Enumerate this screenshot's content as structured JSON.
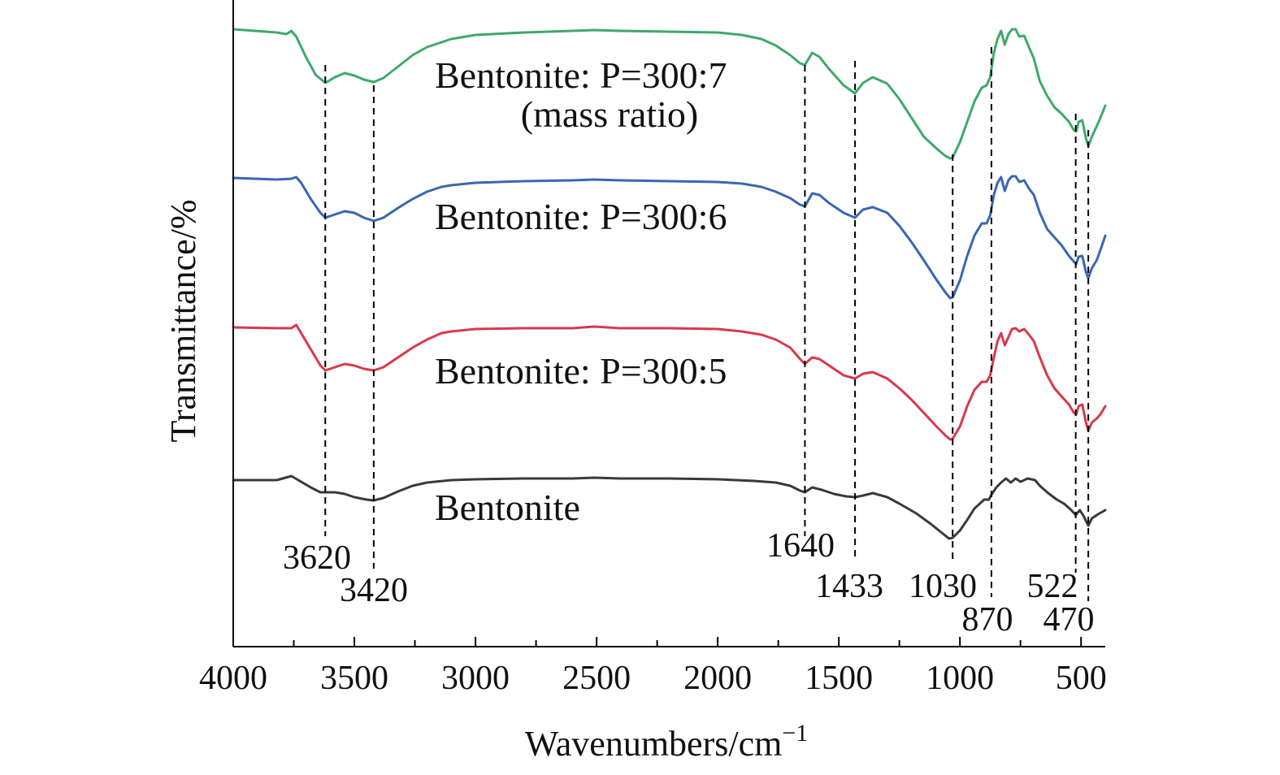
{
  "chart_data": {
    "type": "line",
    "xlabel": "Wavenumbers/cm",
    "xlabel_superscript": "−1",
    "ylabel": "Transmittance/%",
    "xlim": [
      4000,
      400
    ],
    "x_reversed": true,
    "y_ticks": false,
    "grid": false,
    "x_ticks": [
      4000,
      3500,
      3000,
      2500,
      2000,
      1500,
      1000,
      500
    ],
    "x_tick_labels": [
      "4000",
      "3500",
      "3000",
      "2500",
      "2000",
      "1500",
      "1000",
      "500"
    ],
    "peaks": [
      {
        "x": 3620,
        "label": "3620"
      },
      {
        "x": 3420,
        "label": "3420"
      },
      {
        "x": 1640,
        "label": "1640"
      },
      {
        "x": 1433,
        "label": "1433"
      },
      {
        "x": 1030,
        "label": "1030"
      },
      {
        "x": 870,
        "label": "870"
      },
      {
        "x": 522,
        "label": "522"
      },
      {
        "x": 470,
        "label": "470"
      }
    ],
    "series": [
      {
        "label_lines": [
          "Bentonite"
        ],
        "color": "#3a3a3a",
        "points": [
          [
            4000,
            591
          ],
          [
            3820,
            591
          ],
          [
            3760,
            586
          ],
          [
            3720,
            593
          ],
          [
            3680,
            600
          ],
          [
            3640,
            606
          ],
          [
            3620,
            606
          ],
          [
            3580,
            606
          ],
          [
            3540,
            608
          ],
          [
            3500,
            612
          ],
          [
            3450,
            615
          ],
          [
            3420,
            616
          ],
          [
            3380,
            613
          ],
          [
            3320,
            605
          ],
          [
            3260,
            598
          ],
          [
            3200,
            594
          ],
          [
            3100,
            591
          ],
          [
            3000,
            590
          ],
          [
            2800,
            589
          ],
          [
            2600,
            589
          ],
          [
            2510,
            588
          ],
          [
            2400,
            589
          ],
          [
            2200,
            589
          ],
          [
            2000,
            590
          ],
          [
            1850,
            592
          ],
          [
            1760,
            594
          ],
          [
            1700,
            598
          ],
          [
            1660,
            604
          ],
          [
            1640,
            606
          ],
          [
            1610,
            600
          ],
          [
            1570,
            603
          ],
          [
            1520,
            608
          ],
          [
            1470,
            611
          ],
          [
            1433,
            612
          ],
          [
            1400,
            610
          ],
          [
            1360,
            607
          ],
          [
            1300,
            612
          ],
          [
            1250,
            620
          ],
          [
            1180,
            632
          ],
          [
            1120,
            645
          ],
          [
            1070,
            657
          ],
          [
            1045,
            663
          ],
          [
            1030,
            662
          ],
          [
            1000,
            653
          ],
          [
            970,
            640
          ],
          [
            940,
            626
          ],
          [
            900,
            615
          ],
          [
            880,
            615
          ],
          [
            870,
            609
          ],
          [
            850,
            600
          ],
          [
            830,
            594
          ],
          [
            810,
            589
          ],
          [
            790,
            594
          ],
          [
            770,
            589
          ],
          [
            750,
            593
          ],
          [
            720,
            589
          ],
          [
            690,
            591
          ],
          [
            670,
            598
          ],
          [
            640,
            606
          ],
          [
            600,
            615
          ],
          [
            570,
            620
          ],
          [
            540,
            628
          ],
          [
            522,
            634
          ],
          [
            505,
            628
          ],
          [
            490,
            635
          ],
          [
            470,
            647
          ],
          [
            455,
            638
          ],
          [
            430,
            633
          ],
          [
            400,
            628
          ]
        ]
      },
      {
        "label_lines": [
          "Bentonite: P=300:5"
        ],
        "color": "#d8394a",
        "points": [
          [
            4000,
            403
          ],
          [
            3820,
            404
          ],
          [
            3760,
            404
          ],
          [
            3740,
            400
          ],
          [
            3720,
            410
          ],
          [
            3680,
            430
          ],
          [
            3640,
            450
          ],
          [
            3620,
            456
          ],
          [
            3580,
            452
          ],
          [
            3540,
            448
          ],
          [
            3500,
            450
          ],
          [
            3460,
            454
          ],
          [
            3420,
            456
          ],
          [
            3380,
            452
          ],
          [
            3320,
            440
          ],
          [
            3260,
            428
          ],
          [
            3200,
            418
          ],
          [
            3140,
            410
          ],
          [
            3100,
            408
          ],
          [
            3000,
            405
          ],
          [
            2800,
            404
          ],
          [
            2600,
            404
          ],
          [
            2510,
            402
          ],
          [
            2400,
            404
          ],
          [
            2200,
            404
          ],
          [
            2000,
            405
          ],
          [
            1900,
            408
          ],
          [
            1820,
            412
          ],
          [
            1760,
            418
          ],
          [
            1700,
            428
          ],
          [
            1660,
            442
          ],
          [
            1640,
            448
          ],
          [
            1610,
            440
          ],
          [
            1580,
            442
          ],
          [
            1540,
            450
          ],
          [
            1480,
            462
          ],
          [
            1433,
            466
          ],
          [
            1400,
            460
          ],
          [
            1360,
            458
          ],
          [
            1300,
            466
          ],
          [
            1250,
            478
          ],
          [
            1200,
            492
          ],
          [
            1150,
            508
          ],
          [
            1100,
            524
          ],
          [
            1060,
            536
          ],
          [
            1040,
            541
          ],
          [
            1030,
            540
          ],
          [
            1000,
            525
          ],
          [
            970,
            500
          ],
          [
            940,
            480
          ],
          [
            910,
            470
          ],
          [
            890,
            470
          ],
          [
            875,
            462
          ],
          [
            860,
            440
          ],
          [
            845,
            420
          ],
          [
            830,
            410
          ],
          [
            815,
            425
          ],
          [
            800,
            415
          ],
          [
            785,
            405
          ],
          [
            770,
            404
          ],
          [
            755,
            408
          ],
          [
            735,
            405
          ],
          [
            715,
            412
          ],
          [
            695,
            420
          ],
          [
            670,
            440
          ],
          [
            640,
            462
          ],
          [
            610,
            478
          ],
          [
            580,
            488
          ],
          [
            550,
            498
          ],
          [
            530,
            508
          ],
          [
            520,
            510
          ],
          [
            510,
            500
          ],
          [
            495,
            498
          ],
          [
            480,
            520
          ],
          [
            470,
            530
          ],
          [
            455,
            520
          ],
          [
            435,
            515
          ],
          [
            420,
            510
          ],
          [
            400,
            500
          ]
        ]
      },
      {
        "label_lines": [
          "Bentonite: P=300:6"
        ],
        "color": "#3a66b4",
        "points": [
          [
            4000,
            219
          ],
          [
            3820,
            221
          ],
          [
            3760,
            220
          ],
          [
            3740,
            218
          ],
          [
            3720,
            225
          ],
          [
            3680,
            245
          ],
          [
            3640,
            262
          ],
          [
            3620,
            268
          ],
          [
            3580,
            264
          ],
          [
            3540,
            260
          ],
          [
            3500,
            262
          ],
          [
            3460,
            268
          ],
          [
            3420,
            272
          ],
          [
            3380,
            268
          ],
          [
            3320,
            256
          ],
          [
            3260,
            245
          ],
          [
            3200,
            236
          ],
          [
            3140,
            230
          ],
          [
            3100,
            228
          ],
          [
            3000,
            225
          ],
          [
            2800,
            223
          ],
          [
            2600,
            222
          ],
          [
            2510,
            221
          ],
          [
            2400,
            222
          ],
          [
            2200,
            223
          ],
          [
            2000,
            224
          ],
          [
            1900,
            226
          ],
          [
            1820,
            230
          ],
          [
            1760,
            236
          ],
          [
            1700,
            244
          ],
          [
            1660,
            252
          ],
          [
            1640,
            254
          ],
          [
            1610,
            238
          ],
          [
            1580,
            240
          ],
          [
            1540,
            250
          ],
          [
            1480,
            262
          ],
          [
            1433,
            268
          ],
          [
            1400,
            258
          ],
          [
            1360,
            255
          ],
          [
            1300,
            262
          ],
          [
            1250,
            278
          ],
          [
            1200,
            298
          ],
          [
            1150,
            320
          ],
          [
            1100,
            343
          ],
          [
            1060,
            360
          ],
          [
            1040,
            367
          ],
          [
            1030,
            366
          ],
          [
            1000,
            345
          ],
          [
            970,
            315
          ],
          [
            940,
            290
          ],
          [
            910,
            275
          ],
          [
            890,
            275
          ],
          [
            875,
            265
          ],
          [
            860,
            240
          ],
          [
            845,
            225
          ],
          [
            830,
            218
          ],
          [
            815,
            235
          ],
          [
            800,
            222
          ],
          [
            785,
            217
          ],
          [
            770,
            217
          ],
          [
            755,
            224
          ],
          [
            735,
            222
          ],
          [
            715,
            232
          ],
          [
            695,
            240
          ],
          [
            670,
            262
          ],
          [
            640,
            282
          ],
          [
            610,
            292
          ],
          [
            580,
            302
          ],
          [
            550,
            315
          ],
          [
            530,
            322
          ],
          [
            520,
            325
          ],
          [
            510,
            316
          ],
          [
            495,
            315
          ],
          [
            480,
            335
          ],
          [
            470,
            342
          ],
          [
            455,
            330
          ],
          [
            435,
            320
          ],
          [
            420,
            308
          ],
          [
            400,
            290
          ]
        ]
      },
      {
        "label_lines": [
          "Bentonite: P=300:7",
          "(mass ratio)"
        ],
        "color": "#3fa96a",
        "points": [
          [
            4000,
            36
          ],
          [
            3820,
            40
          ],
          [
            3780,
            42
          ],
          [
            3760,
            38
          ],
          [
            3740,
            45
          ],
          [
            3700,
            70
          ],
          [
            3660,
            92
          ],
          [
            3620,
            102
          ],
          [
            3580,
            95
          ],
          [
            3540,
            90
          ],
          [
            3500,
            93
          ],
          [
            3460,
            98
          ],
          [
            3420,
            101
          ],
          [
            3380,
            96
          ],
          [
            3320,
            82
          ],
          [
            3260,
            68
          ],
          [
            3200,
            58
          ],
          [
            3140,
            52
          ],
          [
            3100,
            48
          ],
          [
            3000,
            43
          ],
          [
            2800,
            40
          ],
          [
            2600,
            38
          ],
          [
            2510,
            37
          ],
          [
            2400,
            38
          ],
          [
            2200,
            39
          ],
          [
            2000,
            40
          ],
          [
            1900,
            43
          ],
          [
            1820,
            48
          ],
          [
            1760,
            56
          ],
          [
            1700,
            68
          ],
          [
            1660,
            78
          ],
          [
            1640,
            80
          ],
          [
            1610,
            65
          ],
          [
            1580,
            70
          ],
          [
            1540,
            85
          ],
          [
            1480,
            105
          ],
          [
            1433,
            115
          ],
          [
            1400,
            102
          ],
          [
            1360,
            95
          ],
          [
            1300,
            103
          ],
          [
            1250,
            122
          ],
          [
            1200,
            145
          ],
          [
            1150,
            168
          ],
          [
            1100,
            182
          ],
          [
            1060,
            192
          ],
          [
            1040,
            195
          ],
          [
            1030,
            194
          ],
          [
            1000,
            175
          ],
          [
            970,
            150
          ],
          [
            940,
            125
          ],
          [
            910,
            108
          ],
          [
            890,
            105
          ],
          [
            875,
            95
          ],
          [
            860,
            65
          ],
          [
            845,
            48
          ],
          [
            830,
            38
          ],
          [
            815,
            55
          ],
          [
            800,
            42
          ],
          [
            785,
            36
          ],
          [
            770,
            36
          ],
          [
            755,
            45
          ],
          [
            735,
            44
          ],
          [
            715,
            58
          ],
          [
            695,
            72
          ],
          [
            670,
            100
          ],
          [
            640,
            118
          ],
          [
            610,
            132
          ],
          [
            580,
            140
          ],
          [
            550,
            150
          ],
          [
            530,
            160
          ],
          [
            520,
            162
          ],
          [
            510,
            150
          ],
          [
            495,
            148
          ],
          [
            480,
            170
          ],
          [
            470,
            180
          ],
          [
            455,
            168
          ],
          [
            435,
            155
          ],
          [
            420,
            145
          ],
          [
            400,
            130
          ]
        ]
      }
    ],
    "series_labels": [
      {
        "lines": [
          "Bentonite: P=300:7",
          "(mass ratio)"
        ]
      },
      {
        "lines": [
          "Bentonite: P=300:6"
        ]
      },
      {
        "lines": [
          "Bentonite: P=300:5"
        ]
      },
      {
        "lines": [
          "Bentonite"
        ]
      }
    ]
  }
}
